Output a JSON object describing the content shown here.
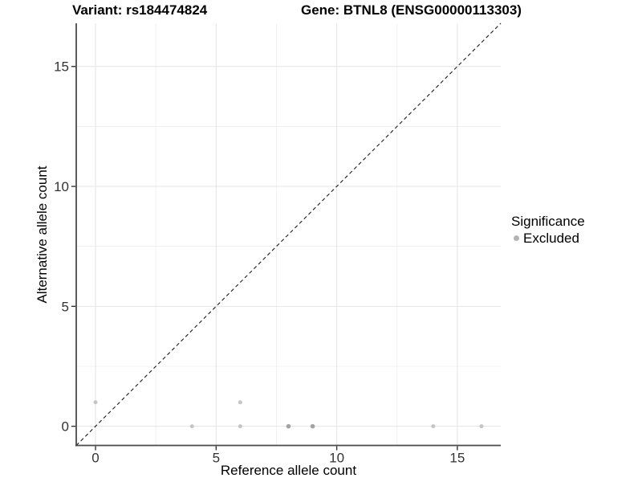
{
  "header": {
    "variant_title": "Variant: rs184474824",
    "gene_title": "Gene: BTNL8 (ENSG00000113303)"
  },
  "chart_data": {
    "type": "scatter",
    "xlabel": "Reference allele count",
    "ylabel": "Alternative allele count",
    "xlim": [
      -0.8,
      16.8
    ],
    "ylim": [
      -0.8,
      16.8
    ],
    "x_ticks": [
      0,
      5,
      10,
      15
    ],
    "y_ticks": [
      0,
      5,
      10,
      15
    ],
    "x_minor_ticks": [
      2.5,
      7.5,
      12.5
    ],
    "y_minor_ticks": [
      2.5,
      7.5,
      12.5
    ],
    "grid": "major+minor",
    "reference_line": {
      "type": "identity",
      "slope": 1,
      "intercept": 0,
      "style": "dashed"
    },
    "series": [
      {
        "name": "Excluded",
        "points": [
          {
            "x": 0,
            "y": 1,
            "shade": "light"
          },
          {
            "x": 4,
            "y": 0,
            "shade": "light"
          },
          {
            "x": 6,
            "y": 0,
            "shade": "light"
          },
          {
            "x": 6,
            "y": 1,
            "shade": "light"
          },
          {
            "x": 8,
            "y": 0,
            "shade": "dark"
          },
          {
            "x": 9,
            "y": 0,
            "shade": "dark"
          },
          {
            "x": 14,
            "y": 0,
            "shade": "light"
          },
          {
            "x": 16,
            "y": 0,
            "shade": "light"
          }
        ]
      }
    ],
    "legend": {
      "title": "Significance",
      "position": "right",
      "items": [
        {
          "label": "Excluded",
          "color": "#b3b3b3"
        }
      ]
    },
    "colors": {
      "point_light": "#c5c5c5",
      "point_dark": "#a3a3a3",
      "grid_major": "#e4e4e4",
      "grid_minor": "#f1f1f1",
      "axis_line": "#4a4a4a",
      "tick_mark": "#333333",
      "tick_label": "#333333",
      "reference_line": "#1a1a1a",
      "background": "#ffffff"
    }
  }
}
